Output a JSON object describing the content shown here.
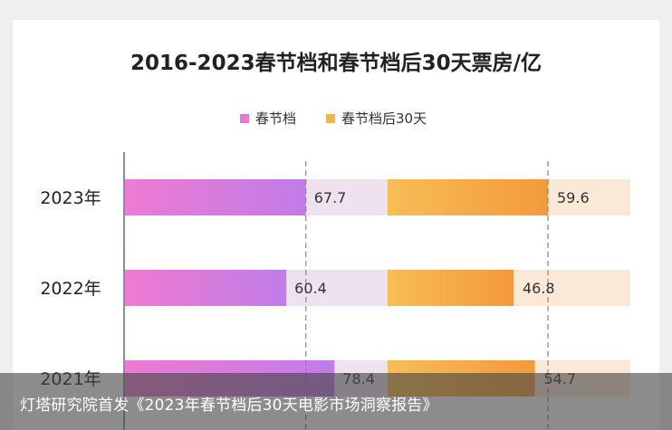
{
  "chart_data": {
    "type": "bar",
    "orientation": "horizontal",
    "title": "2016-2023春节档和春节档后30天票房/亿",
    "legend_position": "top",
    "categories": [
      "2023年",
      "2022年",
      "2021年"
    ],
    "series": [
      {
        "name": "春节档",
        "values": [
          67.7,
          60.4,
          78.4
        ],
        "color": "#e377d2"
      },
      {
        "name": "春节档后30天",
        "values": [
          59.6,
          46.8,
          54.7
        ],
        "color": "#f5b24a"
      }
    ],
    "track_colors": [
      "#efe2ef",
      "#fbe8d6"
    ]
  },
  "caption": "灯塔研究院首发《2023年春节档后30天电影市场洞察报告》"
}
